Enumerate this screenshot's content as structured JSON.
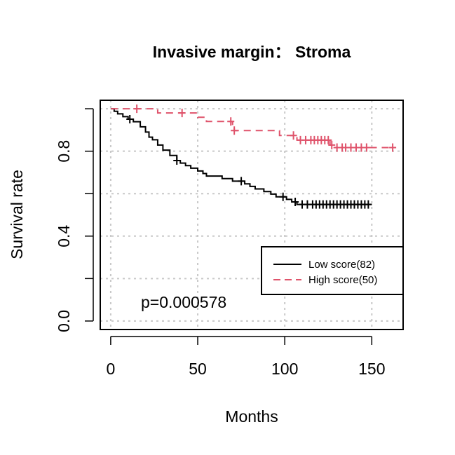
{
  "chart_data": {
    "type": "line",
    "title": "Invasive margin： Stroma",
    "xlabel": "Months",
    "ylabel": "Survival rate",
    "xlim": [
      -6,
      168
    ],
    "ylim": [
      -0.04,
      1.04
    ],
    "xticks": [
      0,
      50,
      100,
      150
    ],
    "xtick_labels": [
      "0",
      "50",
      "100",
      "150"
    ],
    "yticks": [
      0.0,
      0.2,
      0.4,
      0.6,
      0.8,
      1.0
    ],
    "ytick_labels": [
      "0.0",
      "",
      "0.4",
      "",
      "0.8",
      ""
    ],
    "grid": true,
    "legend_position": "right",
    "annotation": "p=0.000578",
    "series": [
      {
        "name": "Low score(82)",
        "color": "#000000",
        "dash": "solid",
        "steps": [
          [
            0,
            1.0
          ],
          [
            2,
            0.988
          ],
          [
            4,
            0.976
          ],
          [
            7,
            0.963
          ],
          [
            10,
            0.951
          ],
          [
            13,
            0.939
          ],
          [
            17,
            0.915
          ],
          [
            20,
            0.89
          ],
          [
            22,
            0.866
          ],
          [
            24,
            0.854
          ],
          [
            27,
            0.829
          ],
          [
            30,
            0.805
          ],
          [
            34,
            0.78
          ],
          [
            38,
            0.756
          ],
          [
            40,
            0.744
          ],
          [
            43,
            0.732
          ],
          [
            46,
            0.72
          ],
          [
            50,
            0.707
          ],
          [
            53,
            0.695
          ],
          [
            55,
            0.683
          ],
          [
            60,
            0.683
          ],
          [
            64,
            0.671
          ],
          [
            70,
            0.659
          ],
          [
            77,
            0.646
          ],
          [
            80,
            0.634
          ],
          [
            83,
            0.622
          ],
          [
            88,
            0.61
          ],
          [
            92,
            0.598
          ],
          [
            95,
            0.585
          ],
          [
            101,
            0.573
          ],
          [
            104,
            0.561
          ],
          [
            107,
            0.549
          ],
          [
            110,
            0.549
          ],
          [
            150,
            0.549
          ]
        ],
        "censors": [
          [
            11,
            0.951
          ],
          [
            38,
            0.756
          ],
          [
            75,
            0.659
          ],
          [
            99,
            0.585
          ],
          [
            106,
            0.561
          ],
          [
            110,
            0.549
          ],
          [
            113,
            0.549
          ],
          [
            116,
            0.549
          ],
          [
            118,
            0.549
          ],
          [
            120,
            0.549
          ],
          [
            122,
            0.549
          ],
          [
            124,
            0.549
          ],
          [
            126,
            0.549
          ],
          [
            128,
            0.549
          ],
          [
            130,
            0.549
          ],
          [
            132,
            0.549
          ],
          [
            134,
            0.549
          ],
          [
            136,
            0.549
          ],
          [
            138,
            0.549
          ],
          [
            140,
            0.549
          ],
          [
            142,
            0.549
          ],
          [
            144,
            0.549
          ],
          [
            146,
            0.549
          ],
          [
            148,
            0.549
          ]
        ]
      },
      {
        "name": "High score(50)",
        "color": "#DF536B",
        "dash": "dashed",
        "steps": [
          [
            0,
            1.0
          ],
          [
            27,
            0.98
          ],
          [
            50,
            0.96
          ],
          [
            55,
            0.94
          ],
          [
            70,
            0.92
          ],
          [
            71,
            0.897
          ],
          [
            97,
            0.874
          ],
          [
            107,
            0.852
          ],
          [
            126,
            0.829
          ],
          [
            128,
            0.817
          ],
          [
            163,
            0.817
          ]
        ],
        "censors": [
          [
            15,
            1.0
          ],
          [
            41,
            0.98
          ],
          [
            69,
            0.94
          ],
          [
            71,
            0.897
          ],
          [
            105,
            0.874
          ],
          [
            109,
            0.852
          ],
          [
            112,
            0.852
          ],
          [
            115,
            0.852
          ],
          [
            117,
            0.852
          ],
          [
            119,
            0.852
          ],
          [
            121,
            0.852
          ],
          [
            123,
            0.852
          ],
          [
            125,
            0.852
          ],
          [
            127,
            0.829
          ],
          [
            130,
            0.817
          ],
          [
            133,
            0.817
          ],
          [
            135,
            0.817
          ],
          [
            138,
            0.817
          ],
          [
            141,
            0.817
          ],
          [
            144,
            0.817
          ],
          [
            147,
            0.817
          ],
          [
            162,
            0.817
          ]
        ]
      }
    ]
  }
}
